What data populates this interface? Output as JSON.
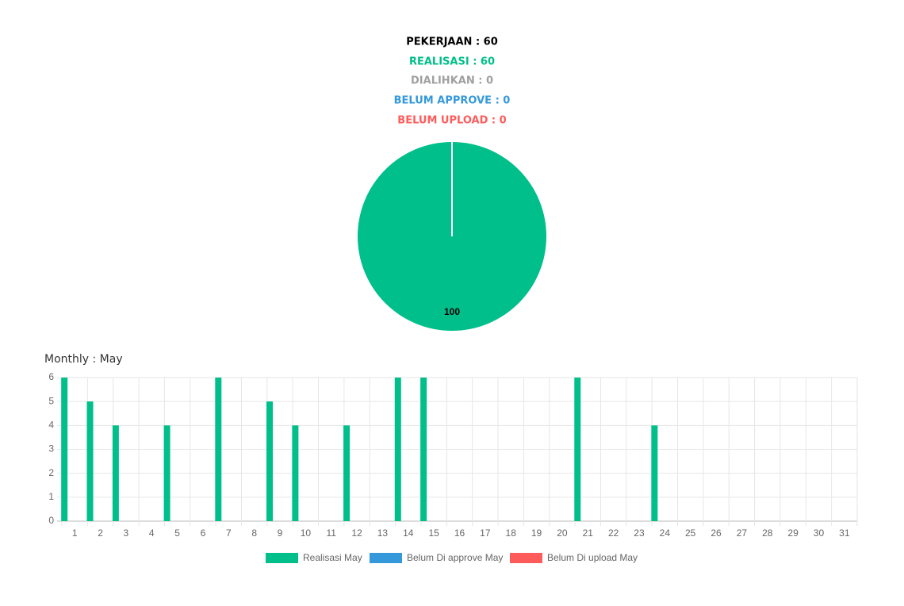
{
  "summary": [
    "PEKERJAAN : 60",
    "REALISASI : 60",
    "DIALIHKAN : 0",
    "BELUM APPROVE : 0",
    "BELUM UPLOAD : 0"
  ],
  "chart_data": [
    {
      "type": "pie",
      "values": [
        100
      ],
      "value_labels": [
        "100"
      ],
      "colors": [
        "#00bf8a"
      ]
    },
    {
      "type": "bar",
      "title": "Monthly : May",
      "categories": [
        "1",
        "2",
        "3",
        "4",
        "5",
        "6",
        "7",
        "8",
        "9",
        "10",
        "11",
        "12",
        "13",
        "14",
        "15",
        "16",
        "17",
        "18",
        "19",
        "20",
        "21",
        "22",
        "23",
        "24",
        "25",
        "26",
        "27",
        "28",
        "29",
        "30",
        "31"
      ],
      "series": [
        {
          "name": "Realisasi May",
          "color": "#00bf8a",
          "values": [
            6,
            5,
            4,
            0,
            4,
            0,
            6,
            0,
            5,
            4,
            0,
            4,
            0,
            6,
            6,
            0,
            0,
            0,
            0,
            0,
            6,
            0,
            0,
            4,
            0,
            0,
            0,
            0,
            0,
            0,
            0
          ]
        },
        {
          "name": "Belum Di approve May",
          "color": "#3498db",
          "values": [
            0,
            0,
            0,
            0,
            0,
            0,
            0,
            0,
            0,
            0,
            0,
            0,
            0,
            0,
            0,
            0,
            0,
            0,
            0,
            0,
            0,
            0,
            0,
            0,
            0,
            0,
            0,
            0,
            0,
            0,
            0
          ]
        },
        {
          "name": "Belum Di upload May",
          "color": "#ff5b5b",
          "values": [
            0,
            0,
            0,
            0,
            0,
            0,
            0,
            0,
            0,
            0,
            0,
            0,
            0,
            0,
            0,
            0,
            0,
            0,
            0,
            0,
            0,
            0,
            0,
            0,
            0,
            0,
            0,
            0,
            0,
            0,
            0
          ]
        }
      ],
      "ylim": [
        0,
        6
      ],
      "yticks": [
        0,
        1,
        2,
        3,
        4,
        5,
        6
      ],
      "grid": true
    }
  ]
}
